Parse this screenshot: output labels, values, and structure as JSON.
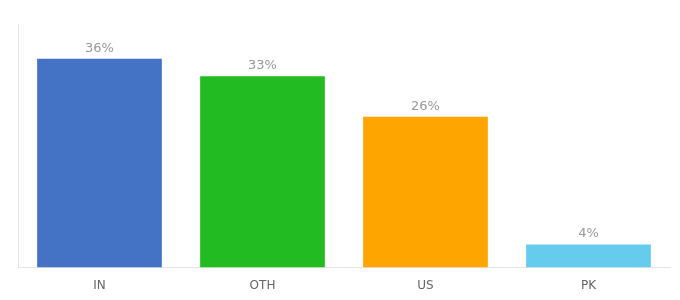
{
  "chart_data": {
    "type": "bar",
    "categories": [
      "IN",
      "OTH",
      "US",
      "PK"
    ],
    "values": [
      36,
      33,
      26,
      4
    ],
    "value_labels": [
      "36%",
      "33%",
      "26%",
      "4%"
    ],
    "colors": [
      "#4472C4",
      "#22BB22",
      "#FFA500",
      "#66CCEE"
    ],
    "ylim": [
      0,
      42
    ],
    "data_labels": true,
    "tick_labels": "x",
    "grid": false
  }
}
